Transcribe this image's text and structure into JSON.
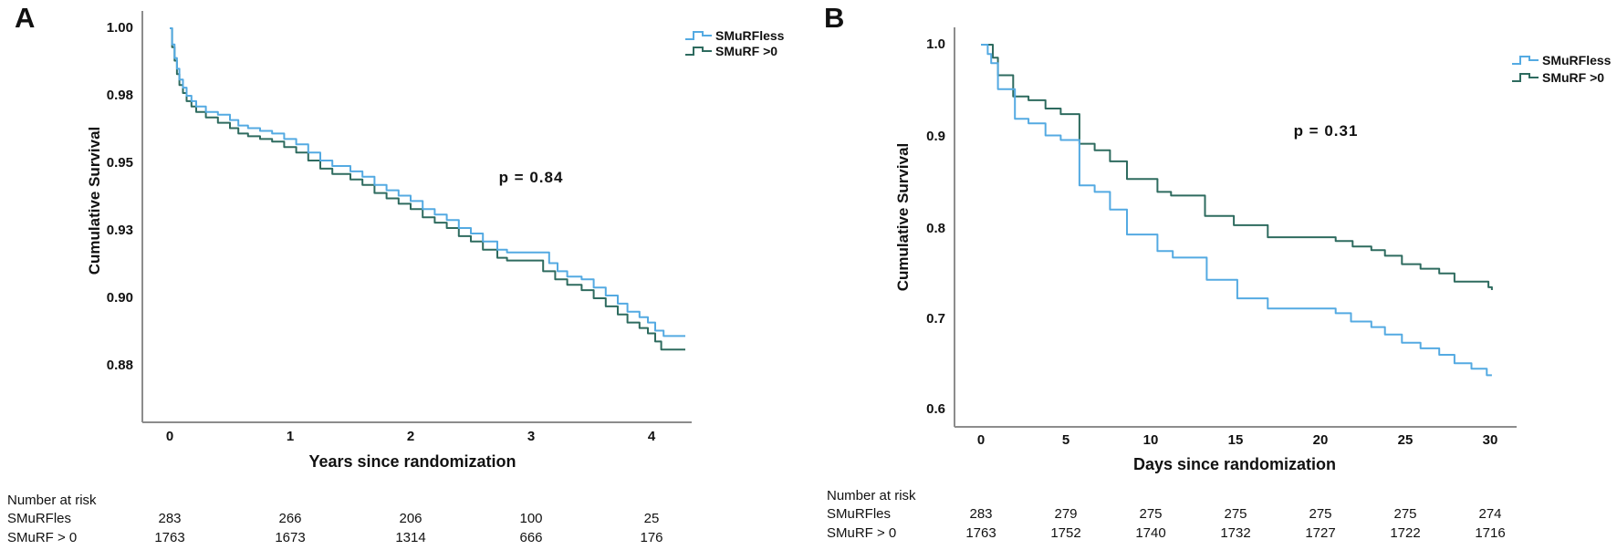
{
  "colors": {
    "smurfless": "#54AAE2",
    "smurf_gt0": "#2E6B5F",
    "axis": "#8C8C8C",
    "text": "#111111"
  },
  "figure": {
    "panels": [
      {
        "label": "A",
        "ylabel": "Cumulative Survival",
        "xlabel": "Years since randomization",
        "p_value": "p = 0.84",
        "y_ticks": [
          "1.00",
          "0.98",
          "0.95",
          "0.93",
          "0.90",
          "0.88"
        ],
        "x_ticks": [
          "0",
          "1",
          "2",
          "3",
          "4"
        ],
        "legend": [
          {
            "label": "SMuRFless"
          },
          {
            "label": "SMuRF >0"
          }
        ],
        "risk_table": {
          "title": "Number at risk",
          "rows": [
            {
              "label": "SMuRFles",
              "values": [
                "283",
                "266",
                "206",
                "100",
                "25"
              ]
            },
            {
              "label": "SMuRF > 0",
              "values": [
                "1763",
                "1673",
                "1314",
                "666",
                "176"
              ]
            }
          ]
        }
      },
      {
        "label": "B",
        "ylabel": "Cumulative Survival",
        "xlabel": "Days since randomization",
        "p_value": "p = 0.31",
        "y_ticks": [
          "1.0",
          "0.9",
          "0.8",
          "0.7",
          "0.6"
        ],
        "x_ticks": [
          "0",
          "5",
          "10",
          "15",
          "20",
          "25",
          "30"
        ],
        "legend": [
          {
            "label": "SMuRFless"
          },
          {
            "label": "SMuRF >0"
          }
        ],
        "risk_table": {
          "title": "Number at risk",
          "rows": [
            {
              "label": "SMuRFles",
              "values": [
                "283",
                "279",
                "275",
                "275",
                "275",
                "275",
                "274"
              ]
            },
            {
              "label": "SMuRF > 0",
              "values": [
                "1763",
                "1752",
                "1740",
                "1732",
                "1727",
                "1722",
                "1716"
              ]
            }
          ]
        }
      }
    ]
  },
  "chart_data": [
    {
      "type": "line",
      "subtype": "kaplan-meier-step",
      "title": "A",
      "xlabel": "Years since randomization",
      "ylabel": "Cumulative Survival",
      "xlim": [
        0,
        4.3
      ],
      "ylim": [
        0.855,
        1.0
      ],
      "x_tick_values": [
        0,
        1,
        2,
        3,
        4
      ],
      "y_tick_values": [
        1.0,
        0.975,
        0.95,
        0.925,
        0.9,
        0.875
      ],
      "y_tick_labels": [
        "1.00",
        "0.98",
        "0.95",
        "0.93",
        "0.90",
        "0.88"
      ],
      "annotation": "p = 0.84",
      "legend_position": "top-right",
      "grid": false,
      "series": [
        {
          "name": "SMuRFless",
          "color": "#54AAE2",
          "steps": [
            [
              0,
              1.0
            ],
            [
              0.02,
              0.994
            ],
            [
              0.04,
              0.989
            ],
            [
              0.06,
              0.985
            ],
            [
              0.08,
              0.981
            ],
            [
              0.11,
              0.978
            ],
            [
              0.14,
              0.975
            ],
            [
              0.18,
              0.973
            ],
            [
              0.22,
              0.971
            ],
            [
              0.3,
              0.969
            ],
            [
              0.4,
              0.968
            ],
            [
              0.5,
              0.966
            ],
            [
              0.57,
              0.964
            ],
            [
              0.65,
              0.963
            ],
            [
              0.75,
              0.962
            ],
            [
              0.85,
              0.961
            ],
            [
              0.95,
              0.959
            ],
            [
              1.05,
              0.957
            ],
            [
              1.15,
              0.954
            ],
            [
              1.25,
              0.951
            ],
            [
              1.35,
              0.949
            ],
            [
              1.5,
              0.947
            ],
            [
              1.6,
              0.945
            ],
            [
              1.7,
              0.942
            ],
            [
              1.8,
              0.94
            ],
            [
              1.9,
              0.938
            ],
            [
              2.0,
              0.936
            ],
            [
              2.1,
              0.933
            ],
            [
              2.2,
              0.931
            ],
            [
              2.3,
              0.929
            ],
            [
              2.4,
              0.926
            ],
            [
              2.5,
              0.924
            ],
            [
              2.6,
              0.921
            ],
            [
              2.72,
              0.918
            ],
            [
              2.8,
              0.917
            ],
            [
              3.15,
              0.913
            ],
            [
              3.22,
              0.91
            ],
            [
              3.3,
              0.908
            ],
            [
              3.42,
              0.907
            ],
            [
              3.52,
              0.904
            ],
            [
              3.62,
              0.901
            ],
            [
              3.72,
              0.898
            ],
            [
              3.8,
              0.895
            ],
            [
              3.9,
              0.893
            ],
            [
              3.97,
              0.891
            ],
            [
              4.03,
              0.888
            ],
            [
              4.1,
              0.886
            ],
            [
              4.28,
              0.886
            ]
          ]
        },
        {
          "name": "SMuRF >0",
          "color": "#2E6B5F",
          "steps": [
            [
              0,
              1.0
            ],
            [
              0.02,
              0.993
            ],
            [
              0.04,
              0.988
            ],
            [
              0.06,
              0.983
            ],
            [
              0.08,
              0.979
            ],
            [
              0.11,
              0.976
            ],
            [
              0.14,
              0.973
            ],
            [
              0.18,
              0.971
            ],
            [
              0.22,
              0.969
            ],
            [
              0.3,
              0.967
            ],
            [
              0.4,
              0.965
            ],
            [
              0.5,
              0.963
            ],
            [
              0.57,
              0.961
            ],
            [
              0.65,
              0.96
            ],
            [
              0.75,
              0.959
            ],
            [
              0.85,
              0.958
            ],
            [
              0.95,
              0.956
            ],
            [
              1.05,
              0.954
            ],
            [
              1.15,
              0.951
            ],
            [
              1.25,
              0.948
            ],
            [
              1.35,
              0.946
            ],
            [
              1.5,
              0.944
            ],
            [
              1.6,
              0.942
            ],
            [
              1.7,
              0.939
            ],
            [
              1.8,
              0.937
            ],
            [
              1.9,
              0.935
            ],
            [
              2.0,
              0.933
            ],
            [
              2.1,
              0.93
            ],
            [
              2.2,
              0.928
            ],
            [
              2.3,
              0.926
            ],
            [
              2.4,
              0.923
            ],
            [
              2.5,
              0.921
            ],
            [
              2.6,
              0.918
            ],
            [
              2.72,
              0.915
            ],
            [
              2.8,
              0.914
            ],
            [
              3.1,
              0.91
            ],
            [
              3.2,
              0.907
            ],
            [
              3.3,
              0.905
            ],
            [
              3.42,
              0.903
            ],
            [
              3.52,
              0.9
            ],
            [
              3.62,
              0.897
            ],
            [
              3.72,
              0.894
            ],
            [
              3.8,
              0.891
            ],
            [
              3.9,
              0.889
            ],
            [
              3.97,
              0.887
            ],
            [
              4.03,
              0.884
            ],
            [
              4.08,
              0.881
            ],
            [
              4.28,
              0.881
            ]
          ]
        }
      ]
    },
    {
      "type": "line",
      "subtype": "kaplan-meier-step",
      "title": "B",
      "xlabel": "Days since randomization",
      "ylabel": "Cumulative Survival",
      "xlim": [
        0,
        30.5
      ],
      "ylim": [
        0.58,
        1.0
      ],
      "x_tick_values": [
        0,
        5,
        10,
        15,
        20,
        25,
        30
      ],
      "y_tick_values": [
        1.0,
        0.9,
        0.8,
        0.7,
        0.6
      ],
      "y_tick_labels": [
        "1.0",
        "0.9",
        "0.8",
        "0.7",
        "0.6"
      ],
      "annotation": "p = 0.31",
      "legend_position": "top-right",
      "grid": false,
      "series": [
        {
          "name": "SMuRFless",
          "color": "#54AAE2",
          "steps": [
            [
              0,
              1.0
            ],
            [
              0.4,
              0.99
            ],
            [
              0.6,
              0.98
            ],
            [
              1.0,
              0.952
            ],
            [
              2.0,
              0.92
            ],
            [
              2.8,
              0.915
            ],
            [
              3.8,
              0.902
            ],
            [
              4.7,
              0.897
            ],
            [
              5.8,
              0.848
            ],
            [
              6.7,
              0.841
            ],
            [
              7.6,
              0.822
            ],
            [
              8.6,
              0.795
            ],
            [
              10.4,
              0.777
            ],
            [
              11.3,
              0.77
            ],
            [
              13.3,
              0.746
            ],
            [
              15.1,
              0.726
            ],
            [
              16.9,
              0.715
            ],
            [
              20.9,
              0.71
            ],
            [
              21.8,
              0.701
            ],
            [
              23.0,
              0.695
            ],
            [
              23.8,
              0.687
            ],
            [
              24.8,
              0.678
            ],
            [
              25.9,
              0.672
            ],
            [
              27.0,
              0.665
            ],
            [
              27.9,
              0.656
            ],
            [
              28.9,
              0.65
            ],
            [
              29.8,
              0.643
            ],
            [
              30.1,
              0.643
            ]
          ]
        },
        {
          "name": "SMuRF >0",
          "color": "#2E6B5F",
          "steps": [
            [
              0,
              1.0
            ],
            [
              0.7,
              0.986
            ],
            [
              1.0,
              0.967
            ],
            [
              1.9,
              0.944
            ],
            [
              2.8,
              0.94
            ],
            [
              3.8,
              0.931
            ],
            [
              4.7,
              0.925
            ],
            [
              5.8,
              0.893
            ],
            [
              6.7,
              0.886
            ],
            [
              7.6,
              0.874
            ],
            [
              8.6,
              0.855
            ],
            [
              10.4,
              0.841
            ],
            [
              11.2,
              0.837
            ],
            [
              13.2,
              0.815
            ],
            [
              14.9,
              0.805
            ],
            [
              16.9,
              0.792
            ],
            [
              20.9,
              0.788
            ],
            [
              21.9,
              0.782
            ],
            [
              23.0,
              0.778
            ],
            [
              23.8,
              0.772
            ],
            [
              24.8,
              0.763
            ],
            [
              25.9,
              0.758
            ],
            [
              27.0,
              0.753
            ],
            [
              27.9,
              0.744
            ],
            [
              29.9,
              0.738
            ],
            [
              30.1,
              0.735
            ]
          ]
        }
      ]
    }
  ]
}
